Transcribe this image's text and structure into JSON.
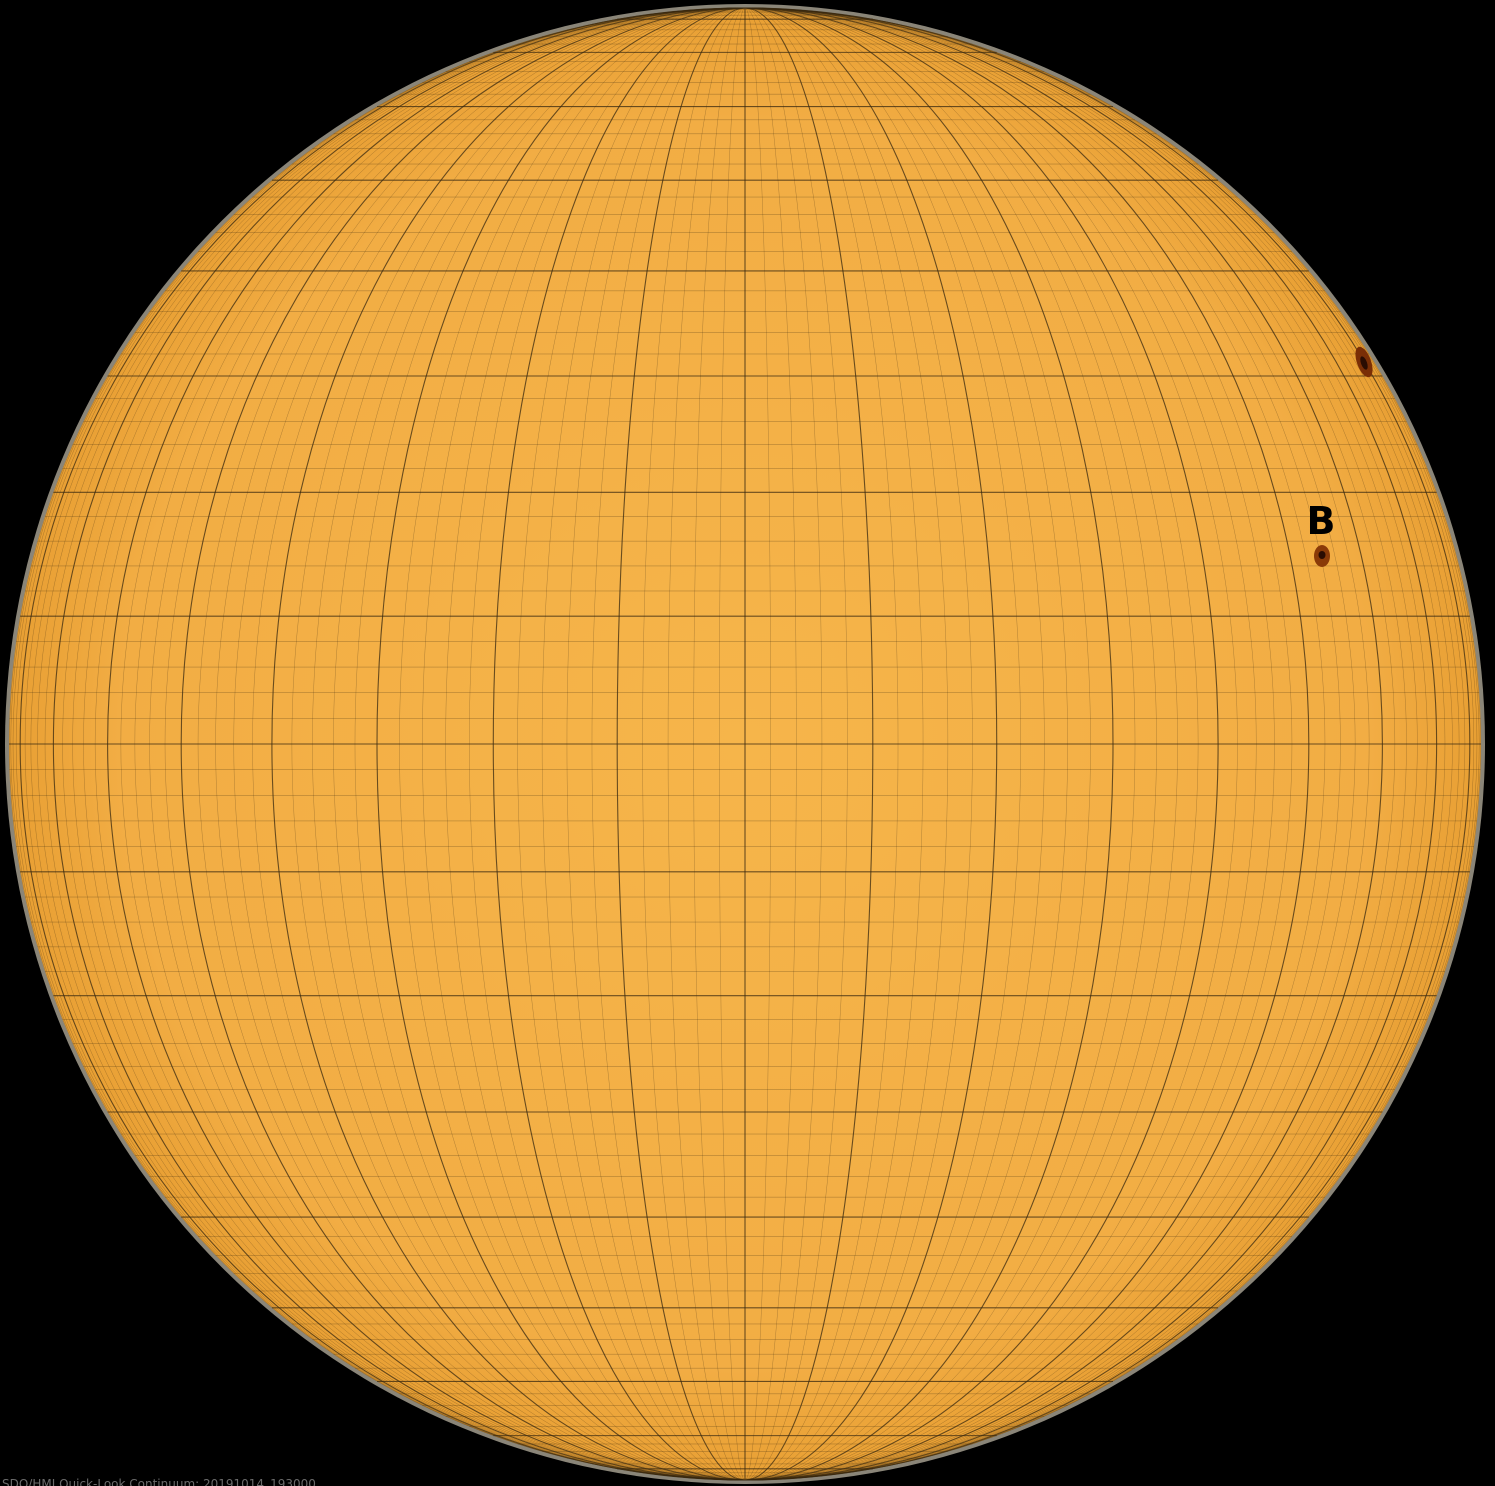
{
  "image": {
    "background_color": "#000000",
    "disk_color_center": "#f6b54a",
    "disk_color_edge": "#e89f33",
    "limb_color": "#8a8578",
    "grid_color": "#3a2a10"
  },
  "active_regions": [
    {
      "label": "B",
      "spot_color": "#8a3a08",
      "umbra_color": "#2a0c02"
    }
  ],
  "unlabeled_spots": [
    {
      "spot_color": "#7a2e06",
      "umbra_color": "#2a0c02"
    }
  ],
  "caption": {
    "text": "SDO/HMI Quick-Look Continuum: 20191014_193000"
  }
}
